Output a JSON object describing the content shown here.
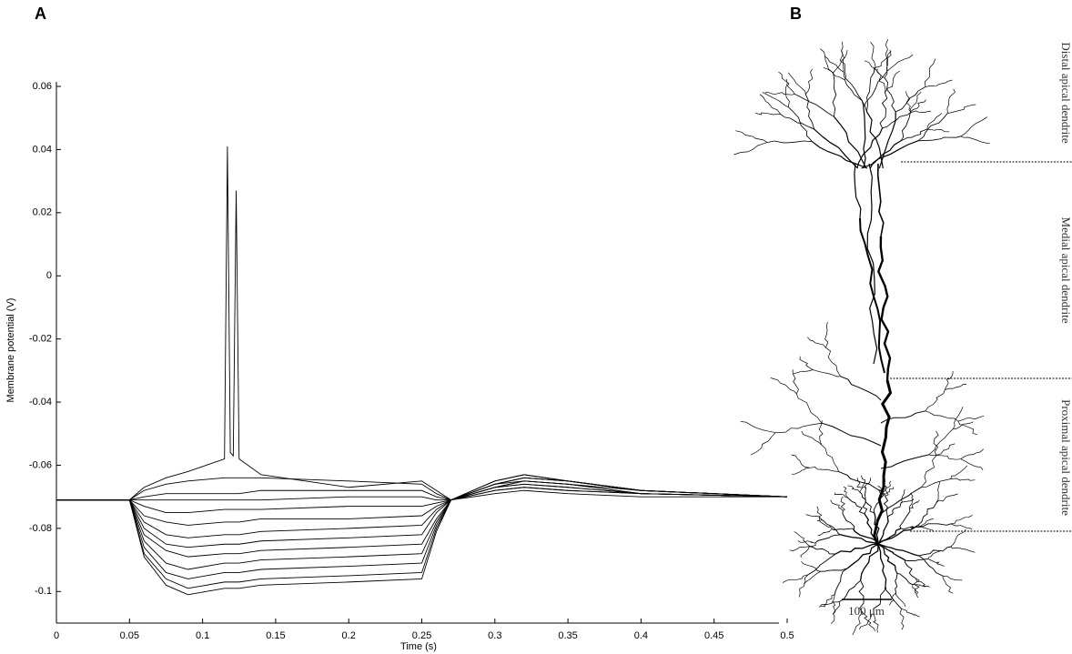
{
  "panel_labels": [
    "A",
    "B"
  ],
  "chart_data": {
    "type": "line",
    "xlabel": "Time (s)",
    "ylabel": "Membrane potential (V)",
    "x": [
      0,
      0.05,
      0.06,
      0.075,
      0.09,
      0.115,
      0.117,
      0.119,
      0.121,
      0.123,
      0.125,
      0.14,
      0.2,
      0.25,
      0.26,
      0.27,
      0.3,
      0.32,
      0.35,
      0.4,
      0.5
    ],
    "xlim": [
      0,
      0.5
    ],
    "xticks": [
      0,
      0.05,
      0.1,
      0.15,
      0.2,
      0.25,
      0.3,
      0.35,
      0.4,
      0.45,
      0.5
    ],
    "ylim": [
      -0.11,
      0.06
    ],
    "yticks": [
      -0.1,
      -0.08,
      -0.06,
      -0.04,
      -0.02,
      0,
      0.02,
      0.04,
      0.06
    ],
    "series": [
      {
        "color": "#000000",
        "values": [
          -0.071,
          -0.071,
          -0.067,
          -0.064,
          -0.062,
          -0.058,
          0.041,
          -0.056,
          -0.057,
          0.027,
          -0.058,
          -0.063,
          -0.067,
          -0.065,
          -0.068,
          -0.071,
          -0.066,
          -0.064,
          -0.065,
          -0.068,
          -0.07
        ]
      },
      {
        "color": "#000000",
        "values": [
          -0.071,
          -0.071,
          -0.068,
          -0.066,
          -0.065,
          -0.064,
          -0.064,
          -0.064,
          -0.064,
          -0.064,
          -0.064,
          -0.064,
          -0.065,
          -0.066,
          -0.069,
          -0.071,
          -0.066,
          -0.065,
          -0.066,
          -0.068,
          -0.07
        ]
      },
      {
        "color": "#000000",
        "values": [
          -0.071,
          -0.071,
          -0.07,
          -0.069,
          -0.069,
          -0.069,
          -0.069,
          -0.069,
          -0.069,
          -0.069,
          -0.069,
          -0.068,
          -0.068,
          -0.068,
          -0.07,
          -0.071,
          -0.068,
          -0.067,
          -0.068,
          -0.069,
          -0.07
        ]
      },
      {
        "color": "#000000",
        "values": [
          -0.071,
          -0.071,
          -0.071,
          -0.071,
          -0.071,
          -0.071,
          -0.071,
          -0.071,
          -0.071,
          -0.071,
          -0.071,
          -0.071,
          -0.07,
          -0.07,
          -0.071,
          -0.071,
          -0.069,
          -0.068,
          -0.069,
          -0.07,
          -0.07
        ]
      },
      {
        "color": "#000000",
        "values": [
          -0.071,
          -0.071,
          -0.073,
          -0.075,
          -0.075,
          -0.074,
          -0.074,
          -0.074,
          -0.074,
          -0.074,
          -0.074,
          -0.074,
          -0.073,
          -0.073,
          -0.072,
          -0.071,
          -0.068,
          -0.067,
          -0.068,
          -0.069,
          -0.07
        ]
      },
      {
        "color": "#000000",
        "values": [
          -0.071,
          -0.071,
          -0.076,
          -0.078,
          -0.079,
          -0.078,
          -0.078,
          -0.078,
          -0.078,
          -0.078,
          -0.078,
          -0.077,
          -0.077,
          -0.076,
          -0.073,
          -0.071,
          -0.067,
          -0.066,
          -0.067,
          -0.069,
          -0.07
        ]
      },
      {
        "color": "#000000",
        "values": [
          -0.071,
          -0.071,
          -0.078,
          -0.082,
          -0.083,
          -0.082,
          -0.082,
          -0.082,
          -0.082,
          -0.082,
          -0.082,
          -0.081,
          -0.08,
          -0.079,
          -0.074,
          -0.071,
          -0.067,
          -0.066,
          -0.067,
          -0.069,
          -0.07
        ]
      },
      {
        "color": "#000000",
        "values": [
          -0.071,
          -0.071,
          -0.08,
          -0.085,
          -0.086,
          -0.085,
          -0.085,
          -0.085,
          -0.085,
          -0.085,
          -0.085,
          -0.084,
          -0.083,
          -0.082,
          -0.075,
          -0.071,
          -0.067,
          -0.065,
          -0.066,
          -0.069,
          -0.07
        ]
      },
      {
        "color": "#000000",
        "values": [
          -0.071,
          -0.071,
          -0.082,
          -0.087,
          -0.089,
          -0.088,
          -0.088,
          -0.088,
          -0.088,
          -0.088,
          -0.088,
          -0.087,
          -0.086,
          -0.085,
          -0.077,
          -0.071,
          -0.067,
          -0.065,
          -0.066,
          -0.069,
          -0.07
        ]
      },
      {
        "color": "#000000",
        "values": [
          -0.071,
          -0.071,
          -0.084,
          -0.091,
          -0.093,
          -0.091,
          -0.091,
          -0.091,
          -0.091,
          -0.091,
          -0.091,
          -0.09,
          -0.089,
          -0.088,
          -0.078,
          -0.071,
          -0.066,
          -0.064,
          -0.065,
          -0.068,
          -0.07
        ]
      },
      {
        "color": "#000000",
        "values": [
          -0.071,
          -0.071,
          -0.086,
          -0.094,
          -0.096,
          -0.094,
          -0.094,
          -0.094,
          -0.094,
          -0.094,
          -0.094,
          -0.093,
          -0.092,
          -0.091,
          -0.079,
          -0.071,
          -0.066,
          -0.064,
          -0.065,
          -0.068,
          -0.07
        ]
      },
      {
        "color": "#000000",
        "values": [
          -0.071,
          -0.071,
          -0.088,
          -0.096,
          -0.099,
          -0.097,
          -0.097,
          -0.097,
          -0.097,
          -0.097,
          -0.097,
          -0.096,
          -0.095,
          -0.094,
          -0.08,
          -0.071,
          -0.065,
          -0.063,
          -0.065,
          -0.068,
          -0.07
        ]
      },
      {
        "color": "#000000",
        "values": [
          -0.071,
          -0.071,
          -0.089,
          -0.098,
          -0.101,
          -0.099,
          -0.099,
          -0.099,
          -0.099,
          -0.099,
          -0.099,
          -0.098,
          -0.097,
          -0.096,
          -0.081,
          -0.071,
          -0.065,
          -0.063,
          -0.065,
          -0.068,
          -0.07
        ]
      }
    ]
  },
  "morphology": {
    "regions": [
      "Distal apical dendrite",
      "Medial apical dendrite",
      "Proximal apical dendrite"
    ],
    "scale_bar": "100 μm"
  }
}
